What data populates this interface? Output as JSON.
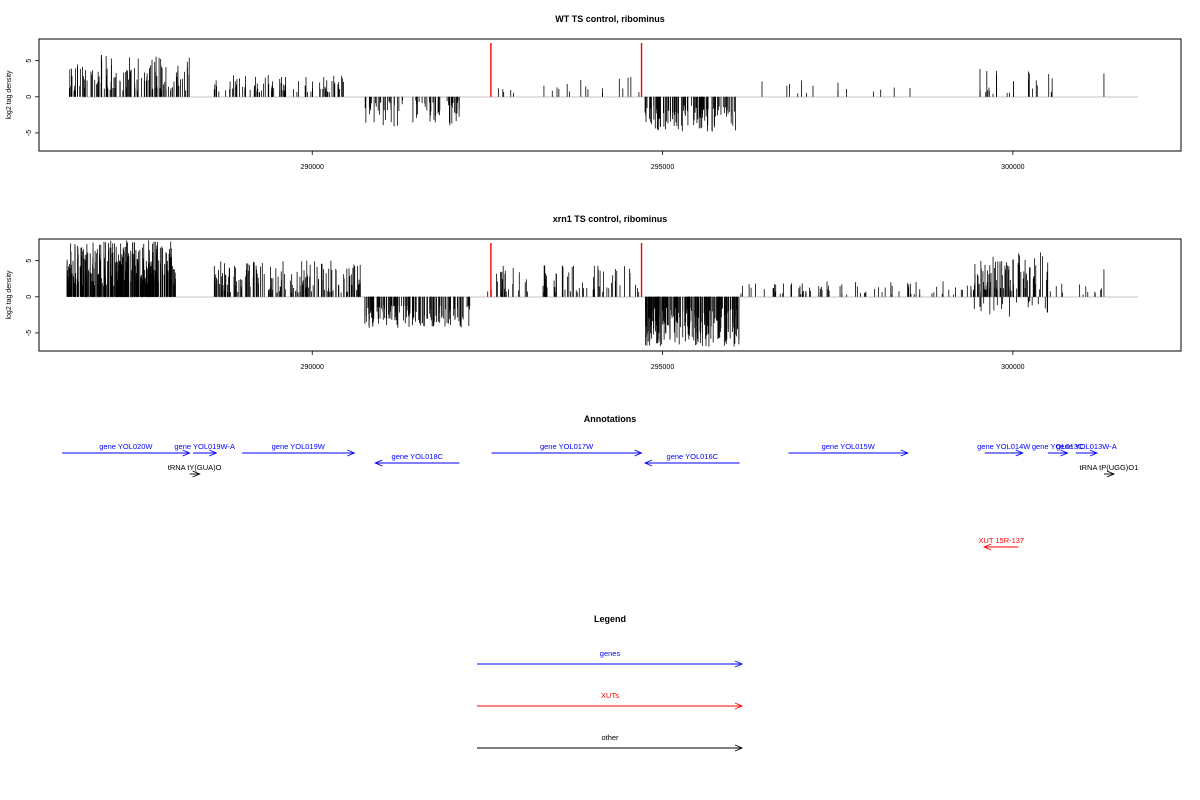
{
  "chart_data": [
    {
      "type": "bar",
      "title": "WT TS control, ribominus",
      "ylabel": "log2 tag density",
      "xlabel": "",
      "xlim": [
        286100,
        302400
      ],
      "ylim": [
        -7.5,
        8
      ],
      "x_ticks": [
        290000,
        295000,
        300000
      ],
      "x_tick_labels": [
        "290000",
        "295000",
        "300000"
      ],
      "y_ticks": [
        -5,
        0,
        5
      ],
      "y_tick_labels": [
        "-5",
        "0",
        "5"
      ],
      "markers": [
        292550,
        294700
      ],
      "marker_color": "#ff0000",
      "segments": [
        {
          "start": 286500,
          "end": 288250,
          "sign": 1,
          "lo": 0.8,
          "hi": 5.8,
          "n": 120,
          "seed": 11
        },
        {
          "start": 288600,
          "end": 290450,
          "sign": 1,
          "lo": 0.6,
          "hi": 3.0,
          "n": 90,
          "seed": 12
        },
        {
          "start": 290750,
          "end": 292100,
          "sign": -1,
          "lo": 0.5,
          "hi": 4.2,
          "n": 70,
          "seed": 13
        },
        {
          "start": 292550,
          "end": 293000,
          "sign": 1,
          "lo": 0.5,
          "hi": 2.0,
          "n": 5,
          "seed": 14
        },
        {
          "start": 293300,
          "end": 294700,
          "sign": 1,
          "lo": 0.5,
          "hi": 2.8,
          "n": 16,
          "seed": 15
        },
        {
          "start": 294750,
          "end": 296100,
          "sign": -1,
          "lo": 1.2,
          "hi": 4.9,
          "n": 110,
          "seed": 16
        },
        {
          "start": 296400,
          "end": 298800,
          "sign": 1,
          "lo": 0.4,
          "hi": 2.8,
          "n": 14,
          "seed": 17
        },
        {
          "start": 299500,
          "end": 300600,
          "sign": 1,
          "lo": 0.4,
          "hi": 4.0,
          "n": 25,
          "seed": 18
        },
        {
          "start": 301300,
          "end": 301320,
          "sign": 1,
          "lo": 3.2,
          "hi": 3.4,
          "n": 1,
          "seed": 19
        }
      ]
    },
    {
      "type": "bar",
      "title": "xrn1 TS control, ribominus",
      "ylabel": "log2 tag density",
      "xlabel": "",
      "xlim": [
        286100,
        302400
      ],
      "ylim": [
        -7.5,
        8
      ],
      "x_ticks": [
        290000,
        295000,
        300000
      ],
      "x_tick_labels": [
        "290000",
        "295000",
        "300000"
      ],
      "y_ticks": [
        -5,
        0,
        5
      ],
      "y_tick_labels": [
        "-5",
        "0",
        "5"
      ],
      "markers": [
        292550,
        294700
      ],
      "marker_color": "#ff0000",
      "segments": [
        {
          "start": 286500,
          "end": 288050,
          "sign": 1,
          "lo": 1.5,
          "hi": 7.8,
          "n": 320,
          "seed": 21
        },
        {
          "start": 288600,
          "end": 290700,
          "sign": 1,
          "lo": 0.6,
          "hi": 5.0,
          "n": 170,
          "seed": 22
        },
        {
          "start": 290750,
          "end": 292250,
          "sign": -1,
          "lo": 1.2,
          "hi": 4.3,
          "n": 150,
          "seed": 23
        },
        {
          "start": 292500,
          "end": 294700,
          "sign": 1,
          "lo": 0.6,
          "hi": 4.5,
          "n": 80,
          "seed": 24
        },
        {
          "start": 294750,
          "end": 296100,
          "sign": -1,
          "lo": 1.5,
          "hi": 6.9,
          "n": 220,
          "seed": 25
        },
        {
          "start": 296100,
          "end": 299600,
          "sign": 1,
          "lo": 0.3,
          "hi": 2.5,
          "n": 80,
          "seed": 26
        },
        {
          "start": 299400,
          "end": 300500,
          "sign": 1,
          "lo": 0.8,
          "hi": 6.2,
          "n": 90,
          "seed": 27
        },
        {
          "start": 299400,
          "end": 300500,
          "sign": -1,
          "lo": 0.5,
          "hi": 3.0,
          "n": 20,
          "seed": 28
        },
        {
          "start": 300500,
          "end": 301300,
          "sign": 1,
          "lo": 0.3,
          "hi": 2.0,
          "n": 12,
          "seed": 29
        },
        {
          "start": 301300,
          "end": 301320,
          "sign": 1,
          "lo": 3.8,
          "hi": 4.0,
          "n": 1,
          "seed": 30
        }
      ]
    }
  ],
  "annotations": {
    "title": "Annotations",
    "features": [
      {
        "label": "gene YOL020W",
        "start": 286430,
        "end": 288250,
        "strand": "+",
        "color": "#0000ff",
        "track": 0
      },
      {
        "label": "gene YOL019W-A",
        "start": 288300,
        "end": 288630,
        "strand": "+",
        "color": "#0000ff",
        "track": 0
      },
      {
        "label": "gene YOL019W",
        "start": 289000,
        "end": 290600,
        "strand": "+",
        "color": "#0000ff",
        "track": 0
      },
      {
        "label": "gene YOL018C",
        "start": 290900,
        "end": 292100,
        "strand": "-",
        "color": "#0000ff",
        "track": 1
      },
      {
        "label": "gene YOL017W",
        "start": 292560,
        "end": 294700,
        "strand": "+",
        "color": "#0000ff",
        "track": 0
      },
      {
        "label": "gene YOL016C",
        "start": 294750,
        "end": 296100,
        "strand": "-",
        "color": "#0000ff",
        "track": 1
      },
      {
        "label": "gene YOL015W",
        "start": 296800,
        "end": 298500,
        "strand": "+",
        "color": "#0000ff",
        "track": 0
      },
      {
        "label": "gene YOL014W",
        "start": 299600,
        "end": 300140,
        "strand": "+",
        "color": "#0000ff",
        "track": 0
      },
      {
        "label": "gene YOL013W-A",
        "start": 300900,
        "end": 301200,
        "strand": "+",
        "color": "#0000ff",
        "track": 0
      },
      {
        "label": "gene YOL013C",
        "start": 300500,
        "end": 300780,
        "strand": "+",
        "color": "#0000ff",
        "track": 0
      },
      {
        "label": "tRNA tY(GUA)O",
        "start": 288250,
        "end": 288320,
        "strand": "+",
        "color": "#000000",
        "track": 2
      },
      {
        "label": "tRNA tP(UGG)O1",
        "start": 301300,
        "end": 301390,
        "strand": "+",
        "color": "#000000",
        "track": 2
      },
      {
        "label": "XUT 15R-137",
        "start": 299590,
        "end": 300080,
        "strand": "-",
        "color": "#ff0000",
        "track": 3
      }
    ]
  },
  "legend": {
    "title": "Legend",
    "items": [
      {
        "label": "genes",
        "color": "#0000ff"
      },
      {
        "label": "XUTs",
        "color": "#ff0000"
      },
      {
        "label": "other",
        "color": "#000000"
      }
    ]
  }
}
